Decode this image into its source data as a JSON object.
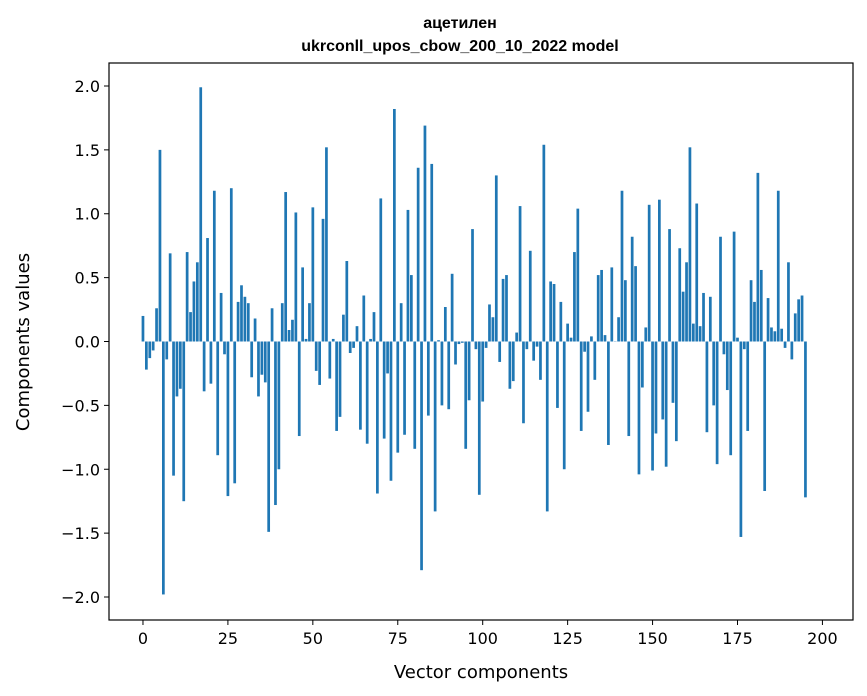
{
  "chart_data": {
    "type": "bar",
    "title_line1": "ацетилен",
    "title_line2": "ukrconll_upos_cbow_200_10_2022 model",
    "xlabel": "Vector components",
    "ylabel": "Components values",
    "xlim": [
      -10,
      209
    ],
    "ylim": [
      -2.18,
      2.18
    ],
    "xticks": [
      0,
      25,
      50,
      75,
      100,
      125,
      150,
      175,
      200
    ],
    "yticks": [
      2.0,
      1.5,
      1.0,
      0.5,
      0.0,
      -0.5,
      -1.0,
      -1.5,
      -2.0
    ],
    "ytick_labels": [
      "2.0",
      "1.5",
      "1.0",
      "0.5",
      "0.0",
      "−0.5",
      "−1.0",
      "−1.5",
      "−2.0"
    ],
    "bar_color": "#1f77b4",
    "values": [
      0.2,
      -0.22,
      -0.13,
      -0.07,
      0.26,
      1.5,
      -1.98,
      -0.14,
      0.69,
      -1.05,
      -0.43,
      -0.37,
      -1.25,
      0.7,
      0.23,
      0.47,
      0.62,
      1.99,
      -0.39,
      0.81,
      -0.33,
      1.18,
      -0.89,
      0.38,
      -0.1,
      -1.21,
      1.2,
      -1.11,
      0.31,
      0.44,
      0.35,
      0.3,
      -0.28,
      0.18,
      -0.43,
      -0.26,
      -0.32,
      -1.49,
      0.26,
      -1.28,
      -1.0,
      0.3,
      1.17,
      0.09,
      0.17,
      1.01,
      -0.74,
      0.58,
      0.02,
      0.3,
      1.05,
      -0.23,
      -0.34,
      0.96,
      1.52,
      -0.29,
      0.02,
      -0.7,
      -0.59,
      0.21,
      0.63,
      -0.09,
      -0.05,
      0.12,
      -0.69,
      0.36,
      -0.8,
      0.02,
      0.23,
      -1.19,
      1.12,
      -0.76,
      -0.25,
      -1.09,
      1.82,
      -0.87,
      0.3,
      -0.73,
      1.03,
      0.52,
      -0.84,
      1.36,
      -1.79,
      1.69,
      -0.58,
      1.39,
      -1.33,
      0.01,
      -0.5,
      0.27,
      -0.53,
      0.53,
      -0.18,
      -0.02,
      -0.01,
      -0.84,
      -0.46,
      0.88,
      -0.06,
      -1.2,
      -0.47,
      -0.05,
      0.29,
      0.19,
      1.3,
      -0.16,
      0.49,
      0.52,
      -0.37,
      -0.31,
      0.07,
      1.06,
      -0.64,
      -0.06,
      0.71,
      -0.15,
      -0.04,
      -0.3,
      1.54,
      -1.33,
      0.47,
      0.45,
      -0.52,
      0.31,
      -1.0,
      0.14,
      0.03,
      0.7,
      1.04,
      -0.7,
      -0.08,
      -0.55,
      0.04,
      -0.3,
      0.52,
      0.56,
      0.05,
      -0.81,
      0.58,
      0.0,
      0.19,
      1.18,
      0.48,
      -0.74,
      0.82,
      0.59,
      -1.04,
      -0.36,
      0.11,
      1.07,
      -1.01,
      -0.72,
      1.11,
      -0.61,
      -0.98,
      0.88,
      -0.48,
      -0.78,
      0.73,
      0.39,
      0.62,
      1.52,
      0.14,
      1.08,
      0.12,
      0.38,
      -0.71,
      0.35,
      -0.5,
      -0.96,
      0.82,
      -0.1,
      -0.38,
      -0.89,
      0.86,
      0.03,
      -1.53,
      -0.06,
      -0.7,
      0.48,
      0.31,
      1.32,
      0.56,
      -1.17,
      0.34,
      0.11,
      0.08,
      1.18,
      0.1,
      -0.05,
      0.62,
      -0.14,
      0.22,
      0.33,
      0.36,
      -1.22
    ]
  }
}
